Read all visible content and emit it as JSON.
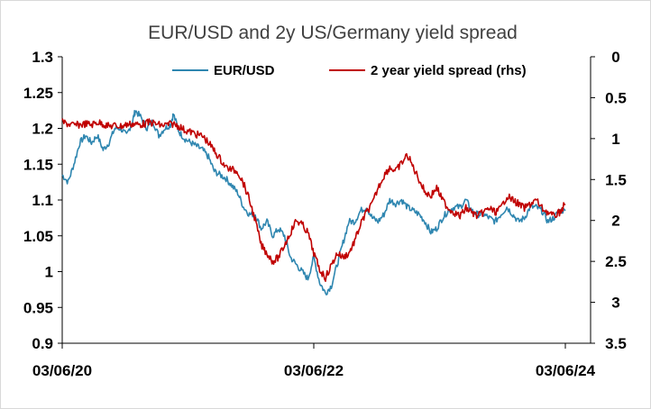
{
  "chart_data": {
    "type": "line",
    "title": "EUR/USD and 2y US/Germany yield spread",
    "x_tick_labels": [
      "03/06/20",
      "03/06/22",
      "03/06/24"
    ],
    "x_range": [
      "03/06/20",
      "03/06/24"
    ],
    "left_axis": {
      "min": 0.9,
      "max": 1.3,
      "ticks": [
        "0.9",
        "0.95",
        "1",
        "1.05",
        "1.1",
        "1.15",
        "1.2",
        "1.25",
        "1.3"
      ]
    },
    "right_axis": {
      "min": 0,
      "max": 3.5,
      "inverted": true,
      "ticks": [
        "0",
        "0.5",
        "1",
        "1.5",
        "2",
        "2.5",
        "3",
        "3.5"
      ]
    },
    "legend_position": "top",
    "grid": false,
    "series": [
      {
        "name": "EUR/USD",
        "axis": "left",
        "color": "#2e86b0",
        "points": [
          [
            0.0,
            1.135
          ],
          [
            0.02,
            1.125
          ],
          [
            0.04,
            1.15
          ],
          [
            0.06,
            1.18
          ],
          [
            0.08,
            1.19
          ],
          [
            0.1,
            1.18
          ],
          [
            0.12,
            1.19
          ],
          [
            0.14,
            1.17
          ],
          [
            0.16,
            1.18
          ],
          [
            0.18,
            1.2
          ],
          [
            0.2,
            1.2
          ],
          [
            0.22,
            1.19
          ],
          [
            0.24,
            1.21
          ],
          [
            0.25,
            1.225
          ],
          [
            0.27,
            1.215
          ],
          [
            0.29,
            1.2
          ],
          [
            0.31,
            1.21
          ],
          [
            0.33,
            1.19
          ],
          [
            0.35,
            1.2
          ],
          [
            0.37,
            1.205
          ],
          [
            0.38,
            1.22
          ],
          [
            0.4,
            1.195
          ],
          [
            0.42,
            1.185
          ],
          [
            0.44,
            1.18
          ],
          [
            0.46,
            1.175
          ],
          [
            0.48,
            1.17
          ],
          [
            0.5,
            1.16
          ],
          [
            0.52,
            1.14
          ],
          [
            0.54,
            1.135
          ],
          [
            0.56,
            1.13
          ],
          [
            0.58,
            1.12
          ],
          [
            0.6,
            1.11
          ],
          [
            0.62,
            1.09
          ],
          [
            0.64,
            1.08
          ],
          [
            0.66,
            1.08
          ],
          [
            0.68,
            1.06
          ],
          [
            0.7,
            1.07
          ],
          [
            0.72,
            1.05
          ],
          [
            0.74,
            1.06
          ],
          [
            0.76,
            1.05
          ],
          [
            0.78,
            1.02
          ],
          [
            0.8,
            1.01
          ],
          [
            0.82,
            1.0
          ],
          [
            0.84,
            0.99
          ],
          [
            0.86,
            1.02
          ],
          [
            0.88,
            0.985
          ],
          [
            0.9,
            0.97
          ],
          [
            0.92,
            0.98
          ],
          [
            0.94,
            1.01
          ],
          [
            0.96,
            1.04
          ],
          [
            0.98,
            1.07
          ],
          [
            1.0,
            1.07
          ],
          [
            1.02,
            1.085
          ],
          [
            1.04,
            1.09
          ],
          [
            1.06,
            1.075
          ],
          [
            1.08,
            1.07
          ],
          [
            1.1,
            1.08
          ],
          [
            1.12,
            1.1
          ],
          [
            1.14,
            1.095
          ],
          [
            1.16,
            1.1
          ],
          [
            1.18,
            1.09
          ],
          [
            1.2,
            1.085
          ],
          [
            1.22,
            1.08
          ],
          [
            1.24,
            1.07
          ],
          [
            1.26,
            1.055
          ],
          [
            1.28,
            1.06
          ],
          [
            1.3,
            1.075
          ],
          [
            1.32,
            1.085
          ],
          [
            1.34,
            1.09
          ],
          [
            1.36,
            1.09
          ],
          [
            1.38,
            1.1
          ],
          [
            1.4,
            1.085
          ],
          [
            1.42,
            1.08
          ],
          [
            1.44,
            1.08
          ],
          [
            1.46,
            1.075
          ],
          [
            1.48,
            1.07
          ],
          [
            1.5,
            1.08
          ],
          [
            1.52,
            1.09
          ],
          [
            1.54,
            1.08
          ],
          [
            1.56,
            1.07
          ],
          [
            1.58,
            1.075
          ],
          [
            1.6,
            1.09
          ],
          [
            1.62,
            1.09
          ],
          [
            1.64,
            1.085
          ],
          [
            1.66,
            1.07
          ],
          [
            1.68,
            1.075
          ],
          [
            1.7,
            1.085
          ],
          [
            1.72,
            1.085
          ]
        ]
      },
      {
        "name": "2 year yield spread (rhs)",
        "axis": "right",
        "color": "#c00000",
        "points": [
          [
            0.0,
            0.8
          ],
          [
            0.02,
            0.82
          ],
          [
            0.04,
            0.84
          ],
          [
            0.06,
            0.83
          ],
          [
            0.08,
            0.82
          ],
          [
            0.1,
            0.83
          ],
          [
            0.12,
            0.8
          ],
          [
            0.14,
            0.82
          ],
          [
            0.16,
            0.85
          ],
          [
            0.18,
            0.84
          ],
          [
            0.2,
            0.85
          ],
          [
            0.22,
            0.83
          ],
          [
            0.24,
            0.82
          ],
          [
            0.26,
            0.83
          ],
          [
            0.28,
            0.82
          ],
          [
            0.3,
            0.8
          ],
          [
            0.32,
            0.82
          ],
          [
            0.34,
            0.84
          ],
          [
            0.36,
            0.83
          ],
          [
            0.38,
            0.82
          ],
          [
            0.4,
            0.85
          ],
          [
            0.42,
            0.9
          ],
          [
            0.44,
            0.92
          ],
          [
            0.46,
            0.95
          ],
          [
            0.48,
            0.97
          ],
          [
            0.5,
            1.05
          ],
          [
            0.52,
            1.15
          ],
          [
            0.54,
            1.25
          ],
          [
            0.56,
            1.35
          ],
          [
            0.58,
            1.38
          ],
          [
            0.6,
            1.4
          ],
          [
            0.62,
            1.55
          ],
          [
            0.64,
            1.75
          ],
          [
            0.66,
            2.0
          ],
          [
            0.68,
            2.3
          ],
          [
            0.7,
            2.4
          ],
          [
            0.72,
            2.5
          ],
          [
            0.74,
            2.45
          ],
          [
            0.76,
            2.3
          ],
          [
            0.78,
            2.15
          ],
          [
            0.8,
            2.0
          ],
          [
            0.82,
            2.05
          ],
          [
            0.84,
            2.15
          ],
          [
            0.86,
            2.4
          ],
          [
            0.88,
            2.6
          ],
          [
            0.9,
            2.7
          ],
          [
            0.92,
            2.55
          ],
          [
            0.94,
            2.4
          ],
          [
            0.96,
            2.45
          ],
          [
            0.98,
            2.4
          ],
          [
            1.0,
            2.25
          ],
          [
            1.02,
            2.05
          ],
          [
            1.04,
            1.9
          ],
          [
            1.06,
            1.8
          ],
          [
            1.08,
            1.6
          ],
          [
            1.1,
            1.45
          ],
          [
            1.12,
            1.35
          ],
          [
            1.14,
            1.4
          ],
          [
            1.16,
            1.3
          ],
          [
            1.18,
            1.2
          ],
          [
            1.2,
            1.35
          ],
          [
            1.22,
            1.5
          ],
          [
            1.24,
            1.65
          ],
          [
            1.26,
            1.7
          ],
          [
            1.28,
            1.6
          ],
          [
            1.3,
            1.75
          ],
          [
            1.32,
            1.85
          ],
          [
            1.34,
            1.9
          ],
          [
            1.36,
            1.95
          ],
          [
            1.38,
            1.85
          ],
          [
            1.4,
            1.9
          ],
          [
            1.42,
            1.95
          ],
          [
            1.44,
            1.9
          ],
          [
            1.46,
            1.85
          ],
          [
            1.48,
            1.9
          ],
          [
            1.5,
            1.85
          ],
          [
            1.52,
            1.7
          ],
          [
            1.54,
            1.75
          ],
          [
            1.56,
            1.8
          ],
          [
            1.58,
            1.85
          ],
          [
            1.6,
            1.8
          ],
          [
            1.62,
            1.75
          ],
          [
            1.64,
            1.85
          ],
          [
            1.66,
            1.9
          ],
          [
            1.68,
            1.95
          ],
          [
            1.7,
            1.9
          ],
          [
            1.72,
            1.8
          ]
        ]
      }
    ]
  }
}
